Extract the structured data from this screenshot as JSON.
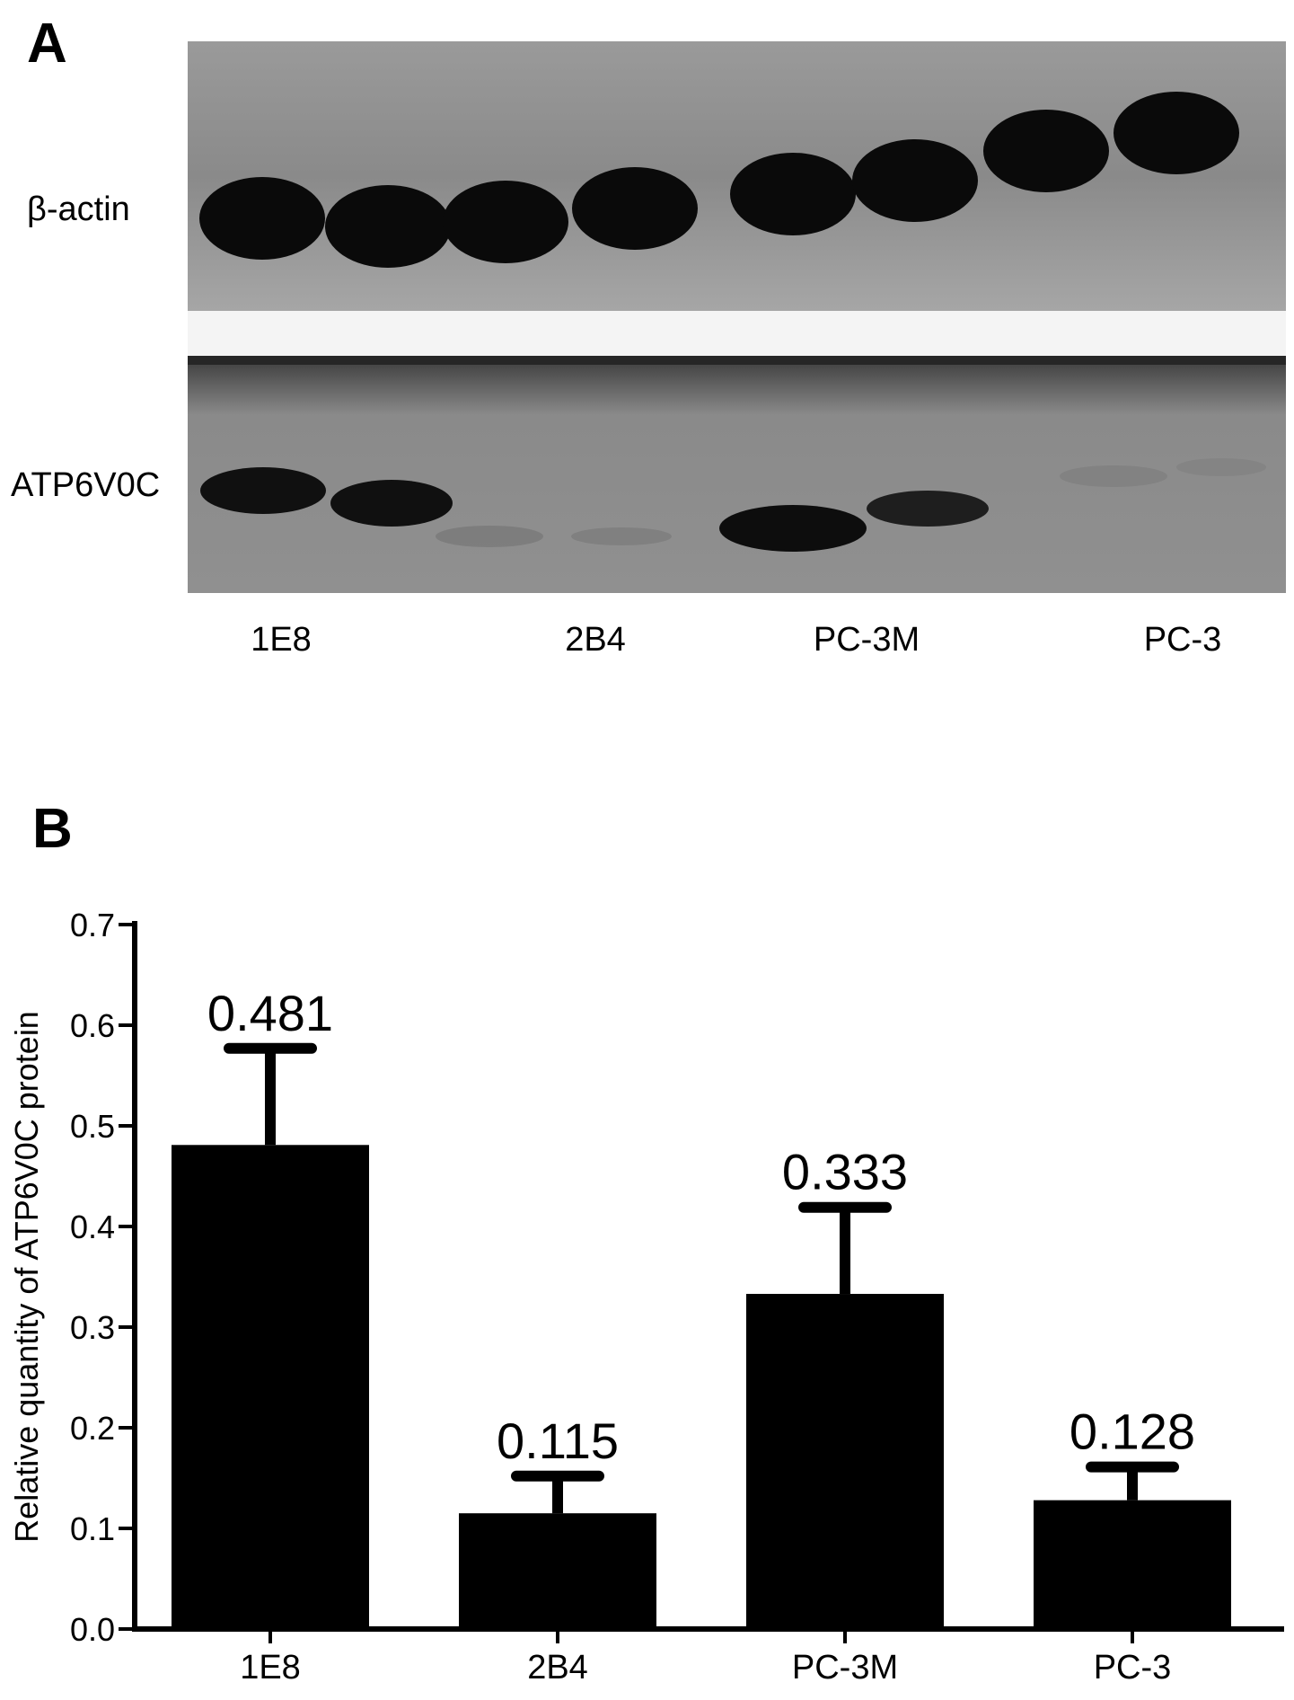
{
  "panels": {
    "a_letter": "A",
    "b_letter": "B"
  },
  "blot": {
    "row_labels": [
      "β-actin",
      "ATP6V0C"
    ],
    "lanes": [
      "1E8",
      "2B4",
      "PC-3M",
      "PC-3"
    ],
    "colors": {
      "membrane": "#8c8c8c",
      "band": "#0a0a0a",
      "separator": "#f4f4f4"
    }
  },
  "chart_data": {
    "type": "bar",
    "categories": [
      "1E8",
      "2B4",
      "PC-3M",
      "PC-3"
    ],
    "values": [
      0.481,
      0.115,
      0.333,
      0.128
    ],
    "error_upper": [
      0.577,
      0.152,
      0.419,
      0.161
    ],
    "data_labels": [
      "0.481",
      "0.115",
      "0.333",
      "0.128"
    ],
    "ylabel": "Relative quantity of ATP6V0C protein",
    "xlabel": "",
    "ylim": [
      0,
      0.7
    ],
    "yticks": [
      "0.0",
      "0.1",
      "0.2",
      "0.3",
      "0.4",
      "0.5",
      "0.6",
      "0.7"
    ],
    "bar_color": "#000000",
    "grid": false
  }
}
